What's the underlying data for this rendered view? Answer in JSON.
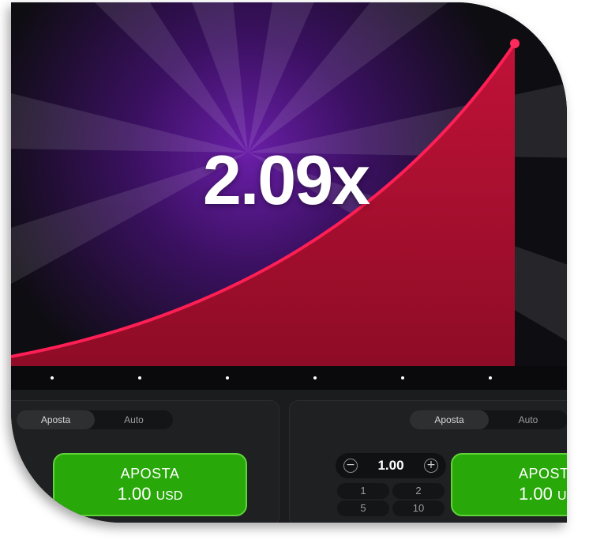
{
  "game": {
    "multiplier": "2.09x",
    "colors": {
      "curve": "#ff1f55",
      "fill": "#a30f2e",
      "glow": "#6a1ea8",
      "background": "#0e0d12"
    }
  },
  "panels": [
    {
      "tabs": [
        {
          "label": "Aposta",
          "active": true
        },
        {
          "label": "Auto",
          "active": false
        }
      ],
      "bet_button": {
        "title": "APOSTA",
        "amount": "1.00",
        "currency": "USD"
      }
    },
    {
      "tabs": [
        {
          "label": "Aposta",
          "active": true
        },
        {
          "label": "Auto",
          "active": false
        }
      ],
      "stepper": {
        "value": "1.00",
        "minus_icon": "minus-icon",
        "plus_icon": "plus-icon"
      },
      "quick_amounts": [
        "1",
        "2",
        "5",
        "10"
      ],
      "bet_button": {
        "title": "APOST",
        "amount": "1.00",
        "currency": "US"
      }
    }
  ],
  "colors": {
    "bet_green": "#28a909",
    "panel": "#1f2021"
  }
}
